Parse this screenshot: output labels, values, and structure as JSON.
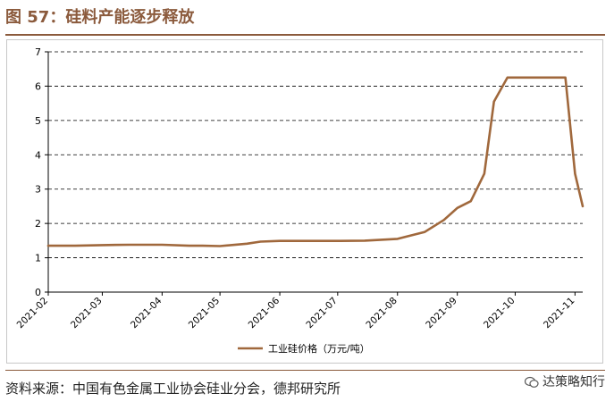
{
  "title": "图 57：硅料产能逐步释放",
  "source": "资料来源：中国有色金属工业协会硅业分会，德邦研究所",
  "watermark": "达策略知行",
  "colors": {
    "accent": "#8B5A3C",
    "series": "#A0683C"
  },
  "chart_data": {
    "type": "line",
    "title": "",
    "xlabel": "",
    "ylabel": "",
    "ylim": [
      0,
      7
    ],
    "yticks": [
      "0",
      "1",
      "2",
      "3",
      "4",
      "5",
      "6",
      "7"
    ],
    "xticks": [
      "2021-02",
      "2021-03",
      "2021-04",
      "2021-05",
      "2021-06",
      "2021-07",
      "2021-08",
      "2021-09",
      "2021-10",
      "2021-11"
    ],
    "grid": "horizontal dashed",
    "legend_position": "bottom-center",
    "series": [
      {
        "name": "工业硅价格（万元/吨）",
        "x": [
          "2021-02-01",
          "2021-02-15",
          "2021-03-01",
          "2021-03-15",
          "2021-04-01",
          "2021-04-15",
          "2021-04-22",
          "2021-05-01",
          "2021-05-15",
          "2021-05-22",
          "2021-06-01",
          "2021-06-15",
          "2021-07-01",
          "2021-07-15",
          "2021-08-01",
          "2021-08-15",
          "2021-08-25",
          "2021-09-01",
          "2021-09-08",
          "2021-09-15",
          "2021-09-20",
          "2021-09-27",
          "2021-10-01",
          "2021-10-10",
          "2021-10-20",
          "2021-10-27",
          "2021-11-01",
          "2021-11-05"
        ],
        "values": [
          1.35,
          1.35,
          1.37,
          1.38,
          1.38,
          1.35,
          1.35,
          1.34,
          1.41,
          1.47,
          1.49,
          1.49,
          1.49,
          1.5,
          1.55,
          1.75,
          2.1,
          2.45,
          2.65,
          3.45,
          5.55,
          6.25,
          6.25,
          6.25,
          6.25,
          6.25,
          3.45,
          2.5
        ]
      }
    ]
  }
}
